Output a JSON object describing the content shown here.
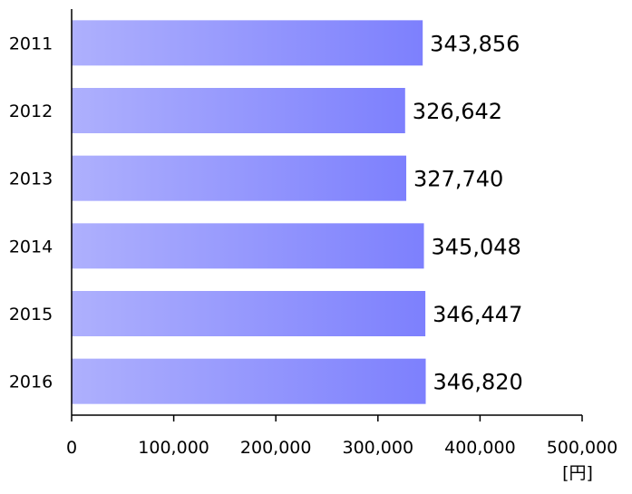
{
  "chart_data": {
    "type": "bar",
    "orientation": "horizontal",
    "title": "",
    "xlabel": "",
    "ylabel": "",
    "unit_label": "[円]",
    "categories": [
      "2011",
      "2012",
      "2013",
      "2014",
      "2015",
      "2016"
    ],
    "values": [
      343856,
      326642,
      327740,
      345048,
      346447,
      346820
    ],
    "value_labels": [
      "343,856",
      "326,642",
      "327,740",
      "345,048",
      "346,447",
      "346,820"
    ],
    "xlim": [
      0,
      500000
    ],
    "x_ticks": [
      0,
      100000,
      200000,
      300000,
      400000,
      500000
    ],
    "x_tick_labels": [
      "0",
      "100,000",
      "200,000",
      "300,000",
      "400,000",
      "500,000"
    ],
    "grid": false,
    "legend": "none",
    "colors": {
      "bar_start": "#aeb0fd",
      "bar_end": "#7d80fd",
      "axis": "#000000",
      "text": "#000000"
    }
  }
}
